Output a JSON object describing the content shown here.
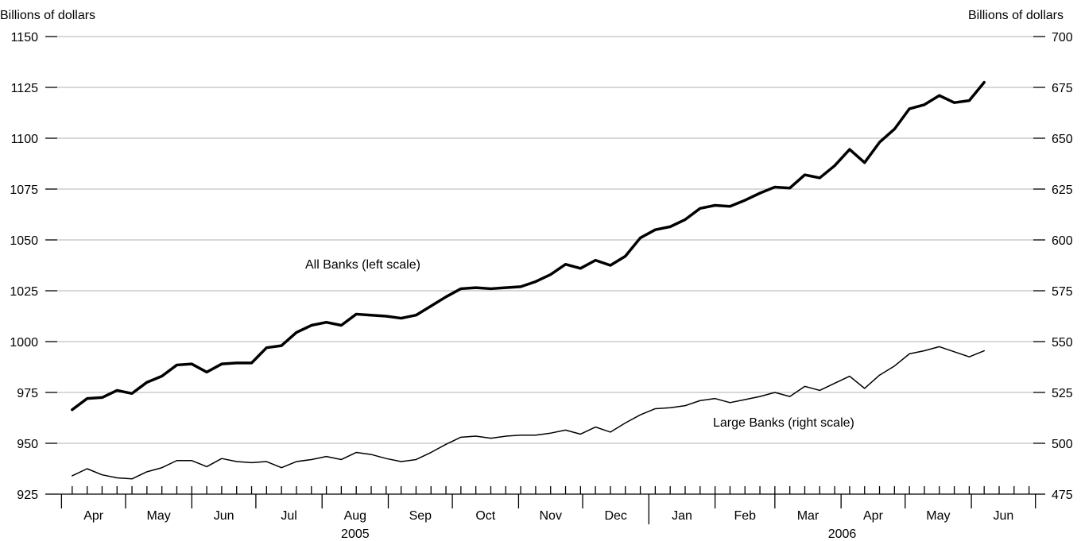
{
  "chart_data": {
    "type": "line",
    "left_axis": {
      "title": "Billions of dollars",
      "ylim": [
        925,
        1150
      ],
      "ticks": [
        925,
        950,
        975,
        1000,
        1025,
        1050,
        1075,
        1100,
        1125,
        1150
      ]
    },
    "right_axis": {
      "title": "Billions of dollars",
      "ylim": [
        475,
        700
      ],
      "ticks": [
        475,
        500,
        525,
        550,
        575,
        600,
        625,
        650,
        675,
        700
      ]
    },
    "grid": true,
    "x_range": [
      "2005-03-30",
      "2006-06-30"
    ],
    "x_months": [
      {
        "start": "2005-04-01",
        "label": "Apr"
      },
      {
        "start": "2005-05-01",
        "label": "May"
      },
      {
        "start": "2005-06-01",
        "label": "Jun"
      },
      {
        "start": "2005-07-01",
        "label": "Jul"
      },
      {
        "start": "2005-08-01",
        "label": "Aug"
      },
      {
        "start": "2005-09-01",
        "label": "Sep"
      },
      {
        "start": "2005-10-01",
        "label": "Oct"
      },
      {
        "start": "2005-11-01",
        "label": "Nov"
      },
      {
        "start": "2005-12-01",
        "label": "Dec"
      },
      {
        "start": "2006-01-01",
        "label": "Jan"
      },
      {
        "start": "2006-02-01",
        "label": "Feb"
      },
      {
        "start": "2006-03-01",
        "label": "Mar"
      },
      {
        "start": "2006-04-01",
        "label": "Apr"
      },
      {
        "start": "2006-05-01",
        "label": "May"
      },
      {
        "start": "2006-06-01",
        "label": "Jun"
      }
    ],
    "x_years": [
      {
        "label": "2005",
        "from": "2005-04-01",
        "to": "2006-01-01"
      },
      {
        "label": "2006",
        "from": "2006-01-01",
        "to": "2006-07-01"
      }
    ],
    "x_weekly_ticks": {
      "first": "2005-04-06",
      "interval_days": 7,
      "last": "2006-06-28"
    },
    "x": [
      "2005-04-06",
      "2005-04-13",
      "2005-04-20",
      "2005-04-27",
      "2005-05-04",
      "2005-05-11",
      "2005-05-18",
      "2005-05-25",
      "2005-06-01",
      "2005-06-08",
      "2005-06-15",
      "2005-06-22",
      "2005-06-29",
      "2005-07-06",
      "2005-07-13",
      "2005-07-20",
      "2005-07-27",
      "2005-08-03",
      "2005-08-10",
      "2005-08-17",
      "2005-08-24",
      "2005-08-31",
      "2005-09-07",
      "2005-09-14",
      "2005-09-21",
      "2005-09-28",
      "2005-10-05",
      "2005-10-12",
      "2005-10-19",
      "2005-10-26",
      "2005-11-02",
      "2005-11-09",
      "2005-11-16",
      "2005-11-23",
      "2005-11-30",
      "2005-12-07",
      "2005-12-14",
      "2005-12-21",
      "2005-12-28",
      "2006-01-04",
      "2006-01-11",
      "2006-01-18",
      "2006-01-25",
      "2006-02-01",
      "2006-02-08",
      "2006-02-15",
      "2006-02-22",
      "2006-03-01",
      "2006-03-08",
      "2006-03-15",
      "2006-03-22",
      "2006-03-29",
      "2006-04-05",
      "2006-04-12",
      "2006-04-19",
      "2006-04-26",
      "2006-05-03",
      "2006-05-10",
      "2006-05-17",
      "2006-05-24",
      "2006-05-31",
      "2006-06-07"
    ],
    "series": [
      {
        "name": "All Banks (left scale)",
        "axis": "left",
        "values": [
          966.5,
          972,
          972.5,
          976,
          974.5,
          980,
          983,
          988.5,
          989,
          985,
          989,
          989.5,
          989.5,
          997,
          998,
          1004.5,
          1008,
          1009.5,
          1008,
          1013.5,
          1013,
          1012.5,
          1011.5,
          1013,
          1017.5,
          1022,
          1026,
          1026.5,
          1026,
          1026.5,
          1027,
          1029.5,
          1033,
          1038,
          1036,
          1040,
          1037.5,
          1042,
          1051,
          1055,
          1056.5,
          1060,
          1065.5,
          1067,
          1066.5,
          1069.5,
          1073,
          1076,
          1075.5,
          1082,
          1080.5,
          1086.5,
          1094.5,
          1088,
          1098,
          1104.5,
          1114.5,
          1116.5,
          1121,
          1117.5,
          1118.5,
          1127.5
        ],
        "line_width": 3.5
      },
      {
        "name": "Large Banks (right scale)",
        "axis": "right",
        "values": [
          484,
          487.5,
          484.5,
          483,
          482.5,
          486,
          488,
          491.5,
          491.5,
          488.5,
          492.5,
          491,
          490.5,
          491,
          488,
          491,
          492,
          493.5,
          492,
          495.5,
          494.5,
          492.5,
          491,
          492,
          495.5,
          499.5,
          503,
          503.5,
          502.5,
          503.5,
          504,
          504,
          505,
          506.5,
          504.5,
          508,
          505.5,
          510,
          514,
          517,
          517.5,
          518.5,
          521,
          522,
          520,
          521.5,
          523,
          525,
          523,
          528,
          526,
          529.5,
          533,
          527,
          533.5,
          538,
          544,
          545.5,
          547.5,
          545,
          542.5,
          545.5
        ],
        "line_width": 1.5
      }
    ],
    "annotations": [
      {
        "text": "All Banks (left scale)",
        "series": 0
      },
      {
        "text": "Large Banks (right scale)",
        "series": 1
      }
    ]
  }
}
